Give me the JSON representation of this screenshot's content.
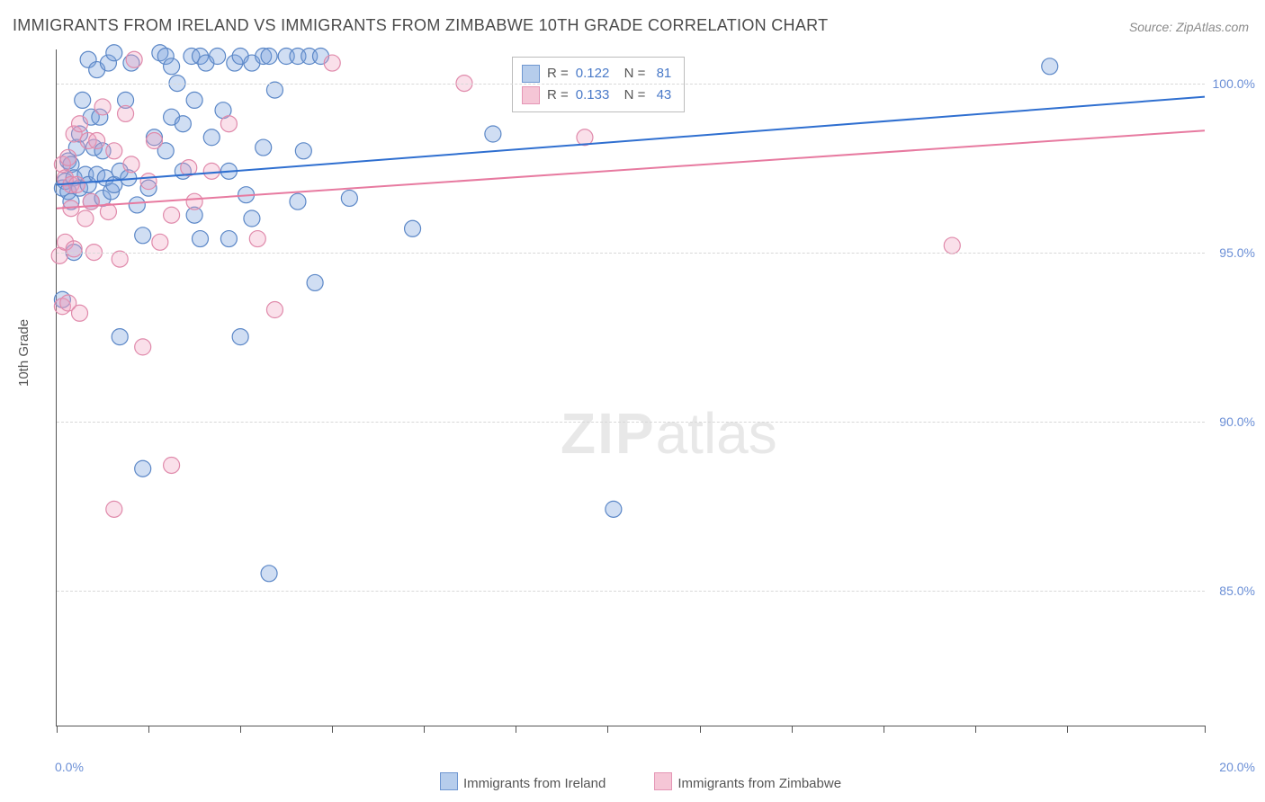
{
  "title": "IMMIGRANTS FROM IRELAND VS IMMIGRANTS FROM ZIMBABWE 10TH GRADE CORRELATION CHART",
  "source": "Source: ZipAtlas.com",
  "ylabel": "10th Grade",
  "watermark_bold": "ZIP",
  "watermark_light": "atlas",
  "chart": {
    "type": "scatter",
    "xlim": [
      0,
      20
    ],
    "ylim": [
      81,
      101
    ],
    "xticks_major": [
      0,
      20
    ],
    "xticks_minor": [
      1.6,
      3.2,
      4.8,
      6.4,
      8.0,
      9.6,
      11.2,
      12.8,
      14.4,
      16.0,
      17.6
    ],
    "xtick_labels": {
      "0": "0.0%",
      "20": "20.0%"
    },
    "yticks": [
      85,
      90,
      95,
      100
    ],
    "ytick_labels": {
      "85": "85.0%",
      "90": "90.0%",
      "95": "95.0%",
      "100": "100.0%"
    },
    "grid_color": "#d8d8d8",
    "axis_color": "#555555",
    "background": "#ffffff",
    "marker_radius": 9,
    "marker_stroke_width": 1.2,
    "line_width": 2
  },
  "series": [
    {
      "name": "Immigrants from Ireland",
      "fill": "rgba(120,160,220,0.35)",
      "stroke": "#5b87c7",
      "line_color": "#2f6fd0",
      "swatch_fill": "#b6cdec",
      "swatch_border": "#6f97d1",
      "R": "0.122",
      "N": "81",
      "trend": {
        "x1": 0,
        "y1": 97.0,
        "x2": 20,
        "y2": 99.6
      },
      "points": [
        [
          0.1,
          96.9
        ],
        [
          0.1,
          93.6
        ],
        [
          0.15,
          97.1
        ],
        [
          0.2,
          97.7
        ],
        [
          0.2,
          96.8
        ],
        [
          0.25,
          96.5
        ],
        [
          0.25,
          97.6
        ],
        [
          0.3,
          95.0
        ],
        [
          0.3,
          97.2
        ],
        [
          0.35,
          98.1
        ],
        [
          0.4,
          96.9
        ],
        [
          0.4,
          98.5
        ],
        [
          0.45,
          99.5
        ],
        [
          0.5,
          97.3
        ],
        [
          0.55,
          100.7
        ],
        [
          0.55,
          97.0
        ],
        [
          0.6,
          96.5
        ],
        [
          0.6,
          99.0
        ],
        [
          0.65,
          98.1
        ],
        [
          0.7,
          97.3
        ],
        [
          0.7,
          100.4
        ],
        [
          0.75,
          99.0
        ],
        [
          0.8,
          96.6
        ],
        [
          0.8,
          98.0
        ],
        [
          0.85,
          97.2
        ],
        [
          0.9,
          100.6
        ],
        [
          0.95,
          96.8
        ],
        [
          1.0,
          97.0
        ],
        [
          1.0,
          100.9
        ],
        [
          1.1,
          92.5
        ],
        [
          1.1,
          97.4
        ],
        [
          1.2,
          99.5
        ],
        [
          1.25,
          97.2
        ],
        [
          1.3,
          100.6
        ],
        [
          1.4,
          96.4
        ],
        [
          1.5,
          88.6
        ],
        [
          1.5,
          95.5
        ],
        [
          1.6,
          96.9
        ],
        [
          1.7,
          98.4
        ],
        [
          1.8,
          100.9
        ],
        [
          1.9,
          100.8
        ],
        [
          1.9,
          98.0
        ],
        [
          2.0,
          100.5
        ],
        [
          2.0,
          99.0
        ],
        [
          2.1,
          100.0
        ],
        [
          2.2,
          98.8
        ],
        [
          2.2,
          97.4
        ],
        [
          2.35,
          100.8
        ],
        [
          2.4,
          96.1
        ],
        [
          2.4,
          99.5
        ],
        [
          2.5,
          100.8
        ],
        [
          2.5,
          95.4
        ],
        [
          2.6,
          100.6
        ],
        [
          2.7,
          98.4
        ],
        [
          2.8,
          100.8
        ],
        [
          2.9,
          99.2
        ],
        [
          3.0,
          95.4
        ],
        [
          3.0,
          97.4
        ],
        [
          3.1,
          100.6
        ],
        [
          3.2,
          92.5
        ],
        [
          3.2,
          100.8
        ],
        [
          3.3,
          96.7
        ],
        [
          3.4,
          96.0
        ],
        [
          3.4,
          100.6
        ],
        [
          3.6,
          98.1
        ],
        [
          3.6,
          100.8
        ],
        [
          3.7,
          85.5
        ],
        [
          3.7,
          100.8
        ],
        [
          3.8,
          99.8
        ],
        [
          4.0,
          100.8
        ],
        [
          4.2,
          100.8
        ],
        [
          4.2,
          96.5
        ],
        [
          4.3,
          98.0
        ],
        [
          4.4,
          100.8
        ],
        [
          4.5,
          94.1
        ],
        [
          4.6,
          100.8
        ],
        [
          5.1,
          96.6
        ],
        [
          6.2,
          95.7
        ],
        [
          7.6,
          98.5
        ],
        [
          9.7,
          87.4
        ],
        [
          17.3,
          100.5
        ]
      ]
    },
    {
      "name": "Immigrants from Zimbabwe",
      "fill": "rgba(240,160,190,0.32)",
      "stroke": "#e08aab",
      "line_color": "#e77aa0",
      "swatch_fill": "#f5c6d6",
      "swatch_border": "#e596b5",
      "R": "0.133",
      "N": "43",
      "trend": {
        "x1": 0,
        "y1": 96.3,
        "x2": 20,
        "y2": 98.6
      },
      "points": [
        [
          0.05,
          94.9
        ],
        [
          0.1,
          97.6
        ],
        [
          0.1,
          93.4
        ],
        [
          0.15,
          97.2
        ],
        [
          0.15,
          95.3
        ],
        [
          0.2,
          97.8
        ],
        [
          0.2,
          93.5
        ],
        [
          0.25,
          97.0
        ],
        [
          0.25,
          96.3
        ],
        [
          0.3,
          95.1
        ],
        [
          0.3,
          98.5
        ],
        [
          0.35,
          97.0
        ],
        [
          0.4,
          98.8
        ],
        [
          0.4,
          93.2
        ],
        [
          0.5,
          96.0
        ],
        [
          0.55,
          98.3
        ],
        [
          0.6,
          96.5
        ],
        [
          0.65,
          95.0
        ],
        [
          0.7,
          98.3
        ],
        [
          0.8,
          99.3
        ],
        [
          0.9,
          96.2
        ],
        [
          1.0,
          98.0
        ],
        [
          1.0,
          87.4
        ],
        [
          1.1,
          94.8
        ],
        [
          1.2,
          99.1
        ],
        [
          1.3,
          97.6
        ],
        [
          1.35,
          100.7
        ],
        [
          1.5,
          92.2
        ],
        [
          1.6,
          97.1
        ],
        [
          1.7,
          98.3
        ],
        [
          1.8,
          95.3
        ],
        [
          2.0,
          96.1
        ],
        [
          2.0,
          88.7
        ],
        [
          2.3,
          97.5
        ],
        [
          2.4,
          96.5
        ],
        [
          2.7,
          97.4
        ],
        [
          3.0,
          98.8
        ],
        [
          3.5,
          95.4
        ],
        [
          3.8,
          93.3
        ],
        [
          4.8,
          100.6
        ],
        [
          7.1,
          100.0
        ],
        [
          9.2,
          98.4
        ],
        [
          15.6,
          95.2
        ]
      ]
    }
  ],
  "legend_labels": {
    "r_prefix": "R = ",
    "n_prefix": "N = "
  }
}
